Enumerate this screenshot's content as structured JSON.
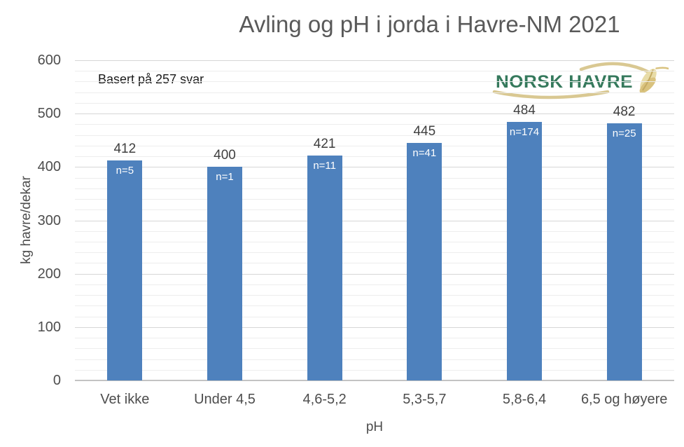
{
  "title": "Avling og pH i jorda i Havre-NM 2021",
  "annotation": "Basert på 257 svar",
  "logo": {
    "text": "NORSK HAVRE"
  },
  "colors": {
    "bar": "#4E81BD",
    "title_text": "#595959",
    "logo_green": "#35795C",
    "logo_tan": "#D9C892",
    "grain_light": "#E8DCA8",
    "grain_mid": "#D9C27E",
    "grain_dark": "#C4AA62"
  },
  "chart_data": {
    "type": "bar",
    "title": "Avling og pH i jorda i Havre-NM 2021",
    "subtitle_note": "Basert på 257 svar",
    "categories": [
      "Vet ikke",
      "Under 4,5",
      "4,6-5,2",
      "5,3-5,7",
      "5,8-6,4",
      "6,5 og høyere"
    ],
    "values": [
      412,
      400,
      421,
      445,
      484,
      482
    ],
    "bar_labels": [
      "n=5",
      "n=1",
      "n=11",
      "n=41",
      "n=174",
      "n=25"
    ],
    "xlabel": "pH",
    "ylabel": "kg havre/dekar",
    "ylim": [
      0,
      600
    ],
    "ytick_interval": 100,
    "minor_grid_interval": 20,
    "yticks": [
      0,
      100,
      200,
      300,
      400,
      500,
      600
    ],
    "grid": true,
    "legend": false,
    "bar_color": "#4E81BD"
  }
}
